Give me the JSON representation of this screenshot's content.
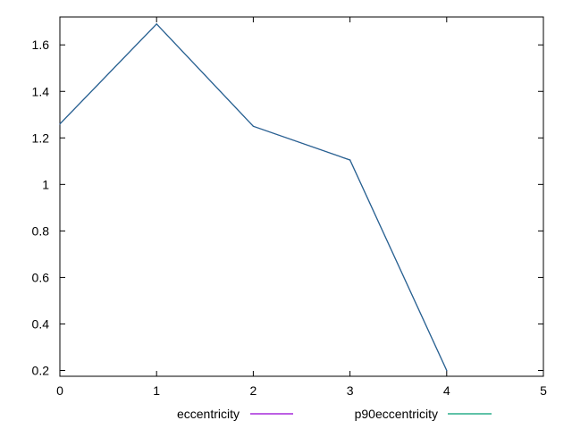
{
  "chart_data": {
    "type": "line",
    "title": "",
    "xlabel": "",
    "ylabel": "",
    "xlim": [
      0,
      5
    ],
    "ylim": [
      0.175,
      1.72
    ],
    "x_ticks": [
      {
        "value": 0,
        "label": "0"
      },
      {
        "value": 1,
        "label": "1"
      },
      {
        "value": 2,
        "label": "2"
      },
      {
        "value": 3,
        "label": "3"
      },
      {
        "value": 4,
        "label": "4"
      },
      {
        "value": 5,
        "label": "5"
      }
    ],
    "y_ticks": [
      {
        "value": 0.2,
        "label": "0.2"
      },
      {
        "value": 0.4,
        "label": "0.4"
      },
      {
        "value": 0.6,
        "label": "0.6"
      },
      {
        "value": 0.8,
        "label": "0.8"
      },
      {
        "value": 1.0,
        "label": "1"
      },
      {
        "value": 1.2,
        "label": "1.2"
      },
      {
        "value": 1.4,
        "label": "1.4"
      },
      {
        "value": 1.6,
        "label": "1.6"
      }
    ],
    "grid": false,
    "legend_position": "bottom-center",
    "series": [
      {
        "name": "eccentricity",
        "color": "#9400d3",
        "x": [
          0,
          1,
          2,
          3,
          4
        ],
        "values": [
          1.26,
          1.69,
          1.25,
          1.105,
          0.2
        ]
      },
      {
        "name": "p90eccentricity",
        "color": "#009e73",
        "x": [
          0,
          1,
          2,
          3,
          4
        ],
        "values": [
          1.26,
          1.69,
          1.25,
          1.105,
          0.2
        ]
      }
    ]
  },
  "colors": {
    "axis": "#000000",
    "overlap_line": "#1f6f8b"
  }
}
